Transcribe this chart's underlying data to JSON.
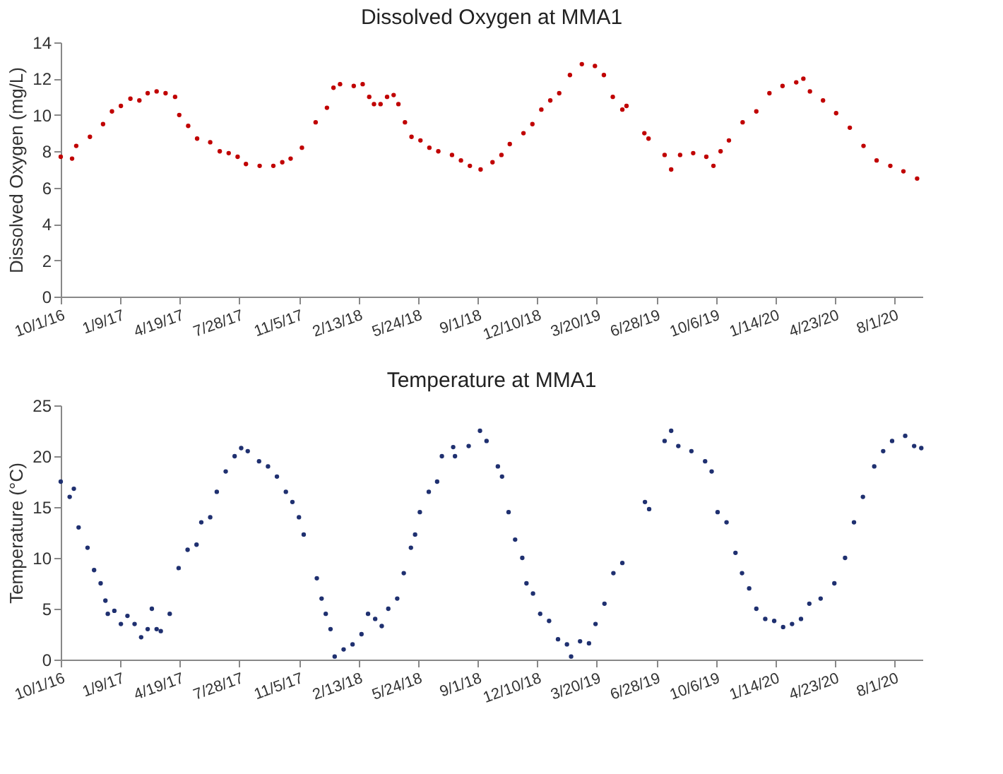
{
  "chart_data": [
    {
      "type": "scatter",
      "title": "Dissolved Oxygen at MMA1",
      "ylabel": "Dissolved Oxygen (mg/L)",
      "marker": "circle",
      "grid": false,
      "xlim": [
        "2016-10-01",
        "2020-09-17"
      ],
      "ylim": [
        0,
        14
      ],
      "yticks": [
        0,
        2,
        4,
        6,
        8,
        10,
        12,
        14
      ],
      "xticks": [
        {
          "value": "2016-10-01",
          "label": "10/1/16"
        },
        {
          "value": "2017-01-09",
          "label": "1/9/17"
        },
        {
          "value": "2017-04-19",
          "label": "4/19/17"
        },
        {
          "value": "2017-07-28",
          "label": "7/28/17"
        },
        {
          "value": "2017-11-05",
          "label": "11/5/17"
        },
        {
          "value": "2018-02-13",
          "label": "2/13/18"
        },
        {
          "value": "2018-05-24",
          "label": "5/24/18"
        },
        {
          "value": "2018-09-01",
          "label": "9/1/18"
        },
        {
          "value": "2018-12-10",
          "label": "12/10/18"
        },
        {
          "value": "2019-03-20",
          "label": "3/20/19"
        },
        {
          "value": "2019-06-28",
          "label": "6/28/19"
        },
        {
          "value": "2019-10-06",
          "label": "10/6/19"
        },
        {
          "value": "2020-01-14",
          "label": "1/14/20"
        },
        {
          "value": "2020-04-23",
          "label": "4/23/20"
        },
        {
          "value": "2020-08-01",
          "label": "8/1/20"
        }
      ],
      "series": [
        {
          "color": "#c00000",
          "x": [
            "2016-10-01",
            "2016-10-20",
            "2016-10-27",
            "2016-11-19",
            "2016-12-11",
            "2016-12-26",
            "2017-01-10",
            "2017-01-26",
            "2017-02-10",
            "2017-02-24",
            "2017-03-11",
            "2017-03-26",
            "2017-04-11",
            "2017-04-18",
            "2017-05-03",
            "2017-05-18",
            "2017-06-09",
            "2017-06-25",
            "2017-07-10",
            "2017-07-25",
            "2017-08-08",
            "2017-08-31",
            "2017-09-23",
            "2017-10-08",
            "2017-10-22",
            "2017-11-10",
            "2017-12-03",
            "2017-12-22",
            "2018-01-02",
            "2018-01-13",
            "2018-02-05",
            "2018-02-20",
            "2018-03-03",
            "2018-03-11",
            "2018-03-22",
            "2018-04-02",
            "2018-04-13",
            "2018-04-21",
            "2018-05-02",
            "2018-05-13",
            "2018-05-28",
            "2018-06-12",
            "2018-06-27",
            "2018-07-20",
            "2018-08-04",
            "2018-08-19",
            "2018-09-06",
            "2018-09-26",
            "2018-10-11",
            "2018-10-25",
            "2018-11-17",
            "2018-12-02",
            "2018-12-17",
            "2019-01-01",
            "2019-01-16",
            "2019-02-03",
            "2019-02-23",
            "2019-03-17",
            "2019-04-01",
            "2019-04-16",
            "2019-05-02",
            "2019-05-09",
            "2019-06-08",
            "2019-06-15",
            "2019-07-12",
            "2019-07-23",
            "2019-08-07",
            "2019-08-29",
            "2019-09-20",
            "2019-10-02",
            "2019-10-14",
            "2019-10-28",
            "2019-11-20",
            "2019-12-13",
            "2020-01-04",
            "2020-01-26",
            "2020-02-18",
            "2020-03-01",
            "2020-03-12",
            "2020-04-03",
            "2020-04-25",
            "2020-05-18",
            "2020-06-10",
            "2020-07-02",
            "2020-07-25",
            "2020-08-16",
            "2020-09-08"
          ],
          "values": [
            7.7,
            7.6,
            8.3,
            8.8,
            9.5,
            10.2,
            10.5,
            10.9,
            10.8,
            11.2,
            11.3,
            11.2,
            11.0,
            10.0,
            9.4,
            8.7,
            8.5,
            8.0,
            7.9,
            7.7,
            7.3,
            7.2,
            7.2,
            7.4,
            7.6,
            8.2,
            9.6,
            10.4,
            11.5,
            11.7,
            11.6,
            11.7,
            11.0,
            10.6,
            10.6,
            11.0,
            11.1,
            10.6,
            9.6,
            8.8,
            8.6,
            8.2,
            8.0,
            7.8,
            7.5,
            7.2,
            7.0,
            7.4,
            7.8,
            8.4,
            9.0,
            9.5,
            10.3,
            10.8,
            11.2,
            12.2,
            12.8,
            12.7,
            12.2,
            11.0,
            10.3,
            10.5,
            9.0,
            8.7,
            7.8,
            7.0,
            7.8,
            7.9,
            7.7,
            7.2,
            8.0,
            8.6,
            9.6,
            10.2,
            11.2,
            11.6,
            11.8,
            12.0,
            11.3,
            10.8,
            10.1,
            9.3,
            8.3,
            7.5,
            7.2,
            6.9,
            6.5
          ]
        }
      ]
    },
    {
      "type": "scatter",
      "title": "Temperature at MMA1",
      "ylabel": "Temperature (°C)",
      "marker": "circle",
      "grid": false,
      "xlim": [
        "2016-10-01",
        "2020-09-17"
      ],
      "ylim": [
        0,
        25
      ],
      "yticks": [
        0,
        5,
        10,
        15,
        20,
        25
      ],
      "xticks": [
        {
          "value": "2016-10-01",
          "label": "10/1/16"
        },
        {
          "value": "2017-01-09",
          "label": "1/9/17"
        },
        {
          "value": "2017-04-19",
          "label": "4/19/17"
        },
        {
          "value": "2017-07-28",
          "label": "7/28/17"
        },
        {
          "value": "2017-11-05",
          "label": "11/5/17"
        },
        {
          "value": "2018-02-13",
          "label": "2/13/18"
        },
        {
          "value": "2018-05-24",
          "label": "5/24/18"
        },
        {
          "value": "2018-09-01",
          "label": "9/1/18"
        },
        {
          "value": "2018-12-10",
          "label": "12/10/18"
        },
        {
          "value": "2019-03-20",
          "label": "3/20/19"
        },
        {
          "value": "2019-06-28",
          "label": "6/28/19"
        },
        {
          "value": "2019-10-06",
          "label": "10/6/19"
        },
        {
          "value": "2020-01-14",
          "label": "1/14/20"
        },
        {
          "value": "2020-04-23",
          "label": "4/23/20"
        },
        {
          "value": "2020-08-01",
          "label": "8/1/20"
        }
      ],
      "series": [
        {
          "color": "#1f3070",
          "x": [
            "2016-10-01",
            "2016-10-16",
            "2016-10-23",
            "2016-10-31",
            "2016-11-15",
            "2016-11-26",
            "2016-12-07",
            "2016-12-15",
            "2016-12-19",
            "2016-12-30",
            "2017-01-10",
            "2017-01-21",
            "2017-02-02",
            "2017-02-13",
            "2017-02-24",
            "2017-03-03",
            "2017-03-11",
            "2017-03-18",
            "2017-04-02",
            "2017-04-17",
            "2017-05-02",
            "2017-05-17",
            "2017-05-25",
            "2017-06-09",
            "2017-06-20",
            "2017-07-05",
            "2017-07-20",
            "2017-07-31",
            "2017-08-11",
            "2017-08-30",
            "2017-09-14",
            "2017-09-29",
            "2017-10-14",
            "2017-10-25",
            "2017-11-05",
            "2017-11-13",
            "2017-12-05",
            "2017-12-13",
            "2017-12-20",
            "2017-12-28",
            "2018-01-04",
            "2018-01-19",
            "2018-02-03",
            "2018-02-18",
            "2018-03-01",
            "2018-03-13",
            "2018-03-24",
            "2018-04-04",
            "2018-04-19",
            "2018-04-30",
            "2018-05-12",
            "2018-05-19",
            "2018-05-27",
            "2018-06-11",
            "2018-06-25",
            "2018-07-03",
            "2018-07-22",
            "2018-07-25",
            "2018-08-17",
            "2018-09-05",
            "2018-09-16",
            "2018-10-05",
            "2018-10-12",
            "2018-10-23",
            "2018-11-03",
            "2018-11-15",
            "2018-11-22",
            "2018-12-03",
            "2018-12-15",
            "2018-12-30",
            "2019-01-14",
            "2019-01-29",
            "2019-02-05",
            "2019-02-20",
            "2019-03-07",
            "2019-03-18",
            "2019-04-02",
            "2019-04-17",
            "2019-05-02",
            "2019-06-09",
            "2019-06-16",
            "2019-07-12",
            "2019-07-23",
            "2019-08-04",
            "2019-08-26",
            "2019-09-18",
            "2019-09-29",
            "2019-10-09",
            "2019-10-24",
            "2019-11-08",
            "2019-11-19",
            "2019-12-01",
            "2019-12-13",
            "2019-12-28",
            "2020-01-12",
            "2020-01-27",
            "2020-02-11",
            "2020-02-26",
            "2020-03-11",
            "2020-03-30",
            "2020-04-22",
            "2020-05-10",
            "2020-05-25",
            "2020-06-09",
            "2020-06-28",
            "2020-07-13",
            "2020-07-28",
            "2020-08-19",
            "2020-09-03",
            "2020-09-15"
          ],
          "values": [
            17.5,
            16.0,
            16.8,
            13.0,
            11.0,
            8.8,
            7.5,
            5.8,
            4.5,
            4.8,
            3.5,
            4.3,
            3.5,
            2.2,
            3.0,
            5.0,
            3.0,
            2.8,
            4.5,
            9.0,
            10.8,
            11.3,
            13.5,
            14.0,
            16.5,
            18.5,
            20.0,
            20.8,
            20.5,
            19.5,
            19.0,
            18.0,
            16.5,
            15.5,
            14.0,
            12.3,
            8.0,
            6.0,
            4.5,
            3.0,
            0.3,
            1.0,
            1.5,
            2.5,
            4.5,
            4.0,
            3.3,
            5.0,
            6.0,
            8.5,
            11.0,
            12.3,
            14.5,
            16.5,
            17.5,
            20.0,
            20.9,
            20.0,
            21.0,
            22.5,
            21.5,
            19.0,
            18.0,
            14.5,
            11.8,
            10.0,
            7.5,
            6.5,
            4.5,
            3.8,
            2.0,
            1.5,
            0.3,
            1.8,
            1.6,
            3.5,
            5.5,
            8.5,
            9.5,
            15.5,
            14.8,
            21.5,
            22.5,
            21.0,
            20.5,
            19.5,
            18.5,
            14.5,
            13.5,
            10.5,
            8.5,
            7.0,
            5.0,
            4.0,
            3.8,
            3.2,
            3.5,
            4.0,
            5.5,
            6.0,
            7.5,
            10.0,
            13.5,
            16.0,
            19.0,
            20.5,
            21.5,
            22.0,
            21.0,
            20.8
          ]
        }
      ]
    }
  ]
}
